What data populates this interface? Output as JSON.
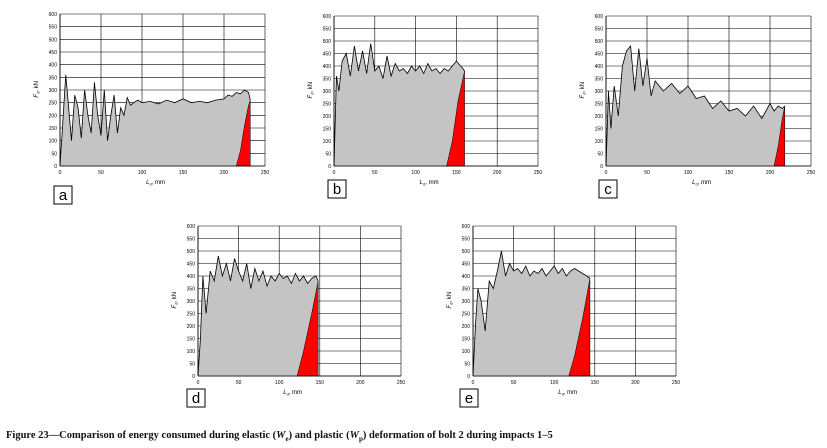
{
  "caption": {
    "prefix": "Figure 23—Comparison of energy consumed during elastic (",
    "we_symbol": "W",
    "we_sub": "e",
    "middle": ") and plastic (",
    "wp_symbol": "W",
    "wp_sub": "p",
    "suffix": ") deformation of bolt 2 during impacts 1–5"
  },
  "colors": {
    "total_fill": "#c4c4c4",
    "plastic_fill": "#ff0000",
    "curve": "#000000",
    "grid": "#000000"
  },
  "chart_data": [
    {
      "type": "area",
      "panel_label": "a",
      "xlabel": "L_d, mm",
      "ylabel": "F_d, kN",
      "xlim": [
        0,
        250
      ],
      "ylim": [
        0,
        600
      ],
      "xticks": [
        0,
        50,
        100,
        150,
        200,
        250
      ],
      "yticks": [
        0,
        50,
        100,
        150,
        200,
        250,
        300,
        350,
        400,
        450,
        500,
        550,
        600
      ],
      "series": [
        {
          "name": "F_d",
          "x": [
            0,
            3,
            7,
            10,
            14,
            18,
            22,
            26,
            30,
            34,
            38,
            42,
            46,
            50,
            54,
            58,
            62,
            66,
            70,
            74,
            78,
            82,
            86,
            90,
            95,
            100,
            110,
            120,
            130,
            140,
            150,
            160,
            170,
            180,
            190,
            200,
            205,
            210,
            215,
            220,
            225,
            230,
            232
          ],
          "y": [
            0,
            150,
            360,
            250,
            100,
            280,
            230,
            110,
            300,
            200,
            130,
            330,
            200,
            120,
            300,
            100,
            200,
            280,
            130,
            230,
            200,
            270,
            240,
            250,
            260,
            250,
            255,
            245,
            260,
            250,
            265,
            250,
            255,
            250,
            260,
            265,
            280,
            275,
            290,
            285,
            300,
            290,
            260
          ]
        },
        {
          "name": "plastic",
          "x": [
            215,
            220,
            225,
            230,
            232
          ],
          "y": [
            0,
            60,
            160,
            240,
            260
          ]
        }
      ]
    },
    {
      "type": "area",
      "panel_label": "b",
      "xlabel": "L_d, mm",
      "ylabel": "F_d, kN",
      "xlim": [
        0,
        250
      ],
      "ylim": [
        0,
        600
      ],
      "xticks": [
        0,
        50,
        100,
        150,
        200,
        250
      ],
      "yticks": [
        0,
        50,
        100,
        150,
        200,
        250,
        300,
        350,
        400,
        450,
        500,
        550,
        600
      ],
      "series": [
        {
          "name": "F_d",
          "x": [
            0,
            3,
            6,
            10,
            15,
            20,
            25,
            30,
            35,
            40,
            45,
            50,
            55,
            60,
            65,
            70,
            75,
            80,
            85,
            90,
            95,
            100,
            105,
            110,
            115,
            120,
            125,
            130,
            135,
            140,
            145,
            150,
            155,
            158,
            160
          ],
          "y": [
            0,
            360,
            300,
            420,
            450,
            360,
            480,
            380,
            460,
            370,
            490,
            380,
            400,
            350,
            440,
            360,
            410,
            380,
            390,
            370,
            400,
            380,
            400,
            370,
            410,
            380,
            390,
            370,
            390,
            380,
            400,
            420,
            400,
            390,
            380
          ]
        },
        {
          "name": "plastic",
          "x": [
            138,
            145,
            152,
            160
          ],
          "y": [
            0,
            100,
            260,
            380
          ]
        }
      ]
    },
    {
      "type": "area",
      "panel_label": "c",
      "xlabel": "L_d, mm",
      "ylabel": "F_d, kN",
      "xlim": [
        0,
        250
      ],
      "ylim": [
        0,
        600
      ],
      "xticks": [
        0,
        50,
        100,
        150,
        200,
        250
      ],
      "yticks": [
        0,
        50,
        100,
        150,
        200,
        250,
        300,
        350,
        400,
        450,
        500,
        550,
        600
      ],
      "series": [
        {
          "name": "F_d",
          "x": [
            0,
            3,
            6,
            10,
            15,
            20,
            25,
            30,
            35,
            40,
            45,
            50,
            55,
            60,
            70,
            80,
            90,
            100,
            110,
            120,
            130,
            140,
            150,
            160,
            170,
            180,
            190,
            200,
            205,
            210,
            215,
            218
          ],
          "y": [
            0,
            300,
            150,
            320,
            200,
            400,
            460,
            480,
            300,
            470,
            320,
            430,
            280,
            340,
            300,
            330,
            290,
            320,
            270,
            280,
            230,
            260,
            220,
            230,
            200,
            240,
            190,
            250,
            220,
            240,
            230,
            240
          ]
        },
        {
          "name": "plastic",
          "x": [
            205,
            210,
            215,
            218
          ],
          "y": [
            0,
            80,
            190,
            240
          ]
        }
      ]
    },
    {
      "type": "area",
      "panel_label": "d",
      "xlabel": "L_d, mm",
      "ylabel": "F_d, kN",
      "xlim": [
        0,
        250
      ],
      "ylim": [
        0,
        600
      ],
      "xticks": [
        0,
        50,
        100,
        150,
        200,
        250
      ],
      "yticks": [
        0,
        50,
        100,
        150,
        200,
        250,
        300,
        350,
        400,
        450,
        500,
        550,
        600
      ],
      "series": [
        {
          "name": "F_d",
          "x": [
            0,
            3,
            6,
            10,
            15,
            20,
            25,
            30,
            35,
            40,
            45,
            50,
            55,
            60,
            65,
            70,
            75,
            80,
            85,
            90,
            95,
            100,
            105,
            110,
            115,
            120,
            125,
            130,
            135,
            140,
            145,
            148
          ],
          "y": [
            0,
            150,
            400,
            250,
            420,
            380,
            480,
            400,
            450,
            380,
            470,
            420,
            380,
            450,
            350,
            430,
            380,
            420,
            360,
            400,
            380,
            410,
            390,
            400,
            370,
            410,
            380,
            400,
            370,
            390,
            400,
            380
          ]
        },
        {
          "name": "plastic",
          "x": [
            122,
            130,
            140,
            148
          ],
          "y": [
            0,
            100,
            250,
            380
          ]
        }
      ]
    },
    {
      "type": "area",
      "panel_label": "e",
      "xlabel": "L_d, mm",
      "ylabel": "F_d, kN",
      "xlim": [
        0,
        250
      ],
      "ylim": [
        0,
        600
      ],
      "xticks": [
        0,
        50,
        100,
        150,
        200,
        250
      ],
      "yticks": [
        0,
        50,
        100,
        150,
        200,
        250,
        300,
        350,
        400,
        450,
        500,
        550,
        600
      ],
      "series": [
        {
          "name": "F_d",
          "x": [
            0,
            3,
            6,
            10,
            15,
            20,
            25,
            30,
            35,
            40,
            45,
            50,
            55,
            60,
            65,
            70,
            75,
            80,
            85,
            90,
            95,
            100,
            105,
            110,
            115,
            120,
            125,
            130,
            135,
            140,
            144
          ],
          "y": [
            0,
            200,
            350,
            300,
            180,
            380,
            350,
            420,
            500,
            400,
            450,
            420,
            430,
            410,
            440,
            400,
            420,
            410,
            430,
            400,
            420,
            440,
            410,
            430,
            400,
            420,
            430,
            420,
            410,
            400,
            390
          ]
        },
        {
          "name": "plastic",
          "x": [
            118,
            125,
            135,
            144
          ],
          "y": [
            0,
            80,
            230,
            390
          ]
        }
      ]
    }
  ]
}
